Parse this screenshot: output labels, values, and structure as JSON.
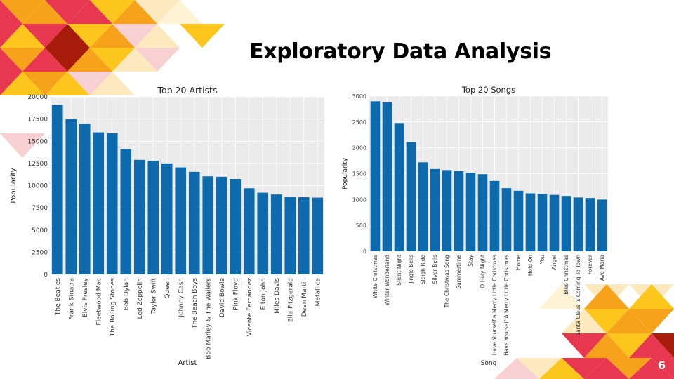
{
  "slide": {
    "title": "Exploratory Data Analysis",
    "page_number": "6"
  },
  "colors": {
    "bar": "#0d6aad",
    "plot_bg": "#ebebeb",
    "deco_red": "#e8384f",
    "deco_orange": "#f7a21b",
    "deco_yellow": "#fcc61c",
    "deco_darkred": "#a81c0b",
    "deco_pink": "#f9d0d2",
    "deco_cream": "#fde9bd"
  },
  "chart_data": [
    {
      "type": "bar",
      "title": "Top 20 Artists",
      "xlabel": "Artist",
      "ylabel": "Popularity",
      "ylim": [
        0,
        20000
      ],
      "yticks": [
        0,
        2500,
        5000,
        7500,
        10000,
        12500,
        15000,
        17500,
        20000
      ],
      "grid": true,
      "categories": [
        "The Beatles",
        "Frank Sinatra",
        "Elvis Presley",
        "Fleetwood Mac",
        "The Rolling Stones",
        "Bob Dylan",
        "Led Zeppelin",
        "Taylor Swift",
        "Queen",
        "Johnny Cash",
        "The Beach Boys",
        "Bob Marley & The Wailers",
        "David Bowie",
        "Pink Floyd",
        "Vicente Fernández",
        "Elton John",
        "Miles Davis",
        "Ella Fitzgerald",
        "Dean Martin",
        "Metallica"
      ],
      "values": [
        19100,
        17500,
        17000,
        16000,
        15900,
        14100,
        12900,
        12800,
        12500,
        12050,
        11550,
        11050,
        11000,
        10750,
        9700,
        9200,
        9000,
        8750,
        8700,
        8650
      ]
    },
    {
      "type": "bar",
      "title": "Top 20 Songs",
      "xlabel": "Song",
      "ylabel": "Popularity",
      "ylim": [
        0,
        3000
      ],
      "yticks": [
        0,
        500,
        1000,
        1500,
        2000,
        2500,
        3000
      ],
      "grid": true,
      "categories": [
        "White Christmas",
        "Winter Wonderland",
        "Silent Night",
        "Jingle Bells",
        "Sleigh Ride",
        "Silver Bells",
        "The Christmas Song",
        "Summertime",
        "Stay",
        "O Holy Night",
        "Have Yourself a Merry Little Christmas",
        "Have Yourself A Merry Little Christmas",
        "Home",
        "Hold On",
        "You",
        "Angel",
        "Blue Christmas",
        "Santa Claus Is Coming To Town",
        "Forever",
        "Ave Maria"
      ],
      "values": [
        2900,
        2880,
        2480,
        2110,
        1720,
        1590,
        1570,
        1550,
        1520,
        1490,
        1360,
        1220,
        1170,
        1120,
        1110,
        1090,
        1070,
        1040,
        1030,
        1000
      ]
    }
  ]
}
